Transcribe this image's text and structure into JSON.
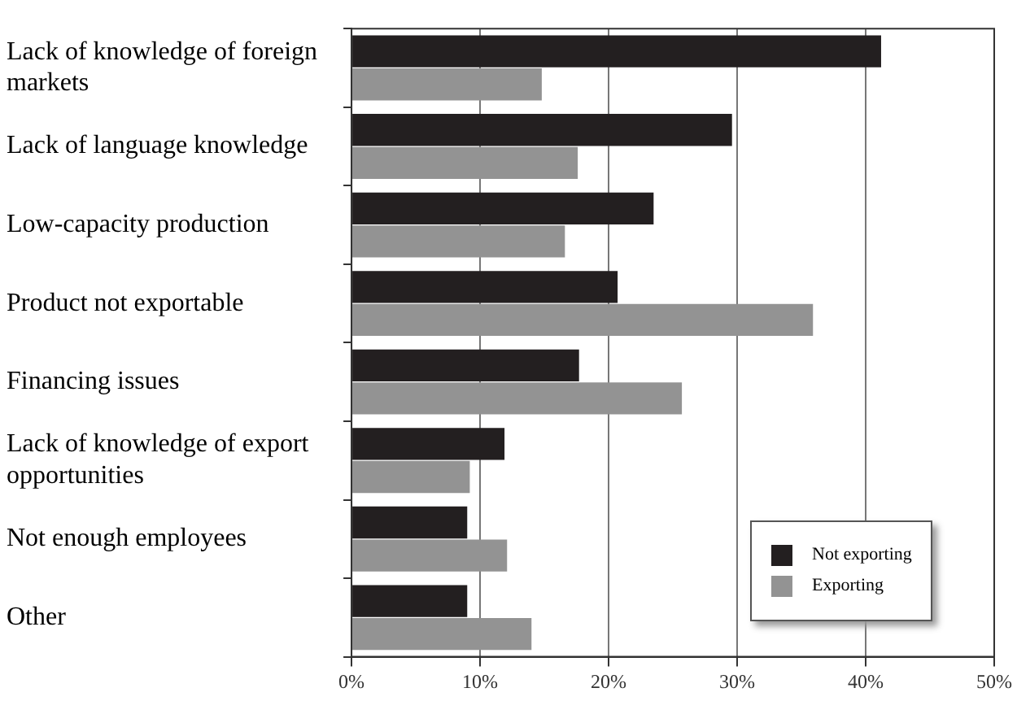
{
  "chart_data": {
    "type": "bar",
    "orientation": "horizontal",
    "categories": [
      "Lack of knowledge of foreign markets",
      "Lack of language knowledge",
      "Low-capacity production",
      "Product not exportable",
      "Financing issues",
      "Lack of knowledge of export opportunities",
      "Not enough employees",
      "Other"
    ],
    "series": [
      {
        "name": "Not exporting",
        "color": "#231f20",
        "values": [
          41.2,
          29.6,
          23.5,
          20.7,
          17.7,
          11.9,
          9.0,
          9.0
        ]
      },
      {
        "name": "Exporting",
        "color": "#939393",
        "values": [
          14.8,
          17.6,
          16.6,
          35.9,
          25.7,
          9.2,
          12.1,
          14.0
        ]
      }
    ],
    "xlim": [
      0,
      50
    ],
    "xticks": [
      {
        "value": 0,
        "label": "0%"
      },
      {
        "value": 10,
        "label": "10%"
      },
      {
        "value": 20,
        "label": "20%"
      },
      {
        "value": 30,
        "label": "30%"
      },
      {
        "value": 40,
        "label": "40%"
      },
      {
        "value": 50,
        "label": "50%"
      }
    ],
    "grid": "x",
    "legend": "bottom right"
  }
}
